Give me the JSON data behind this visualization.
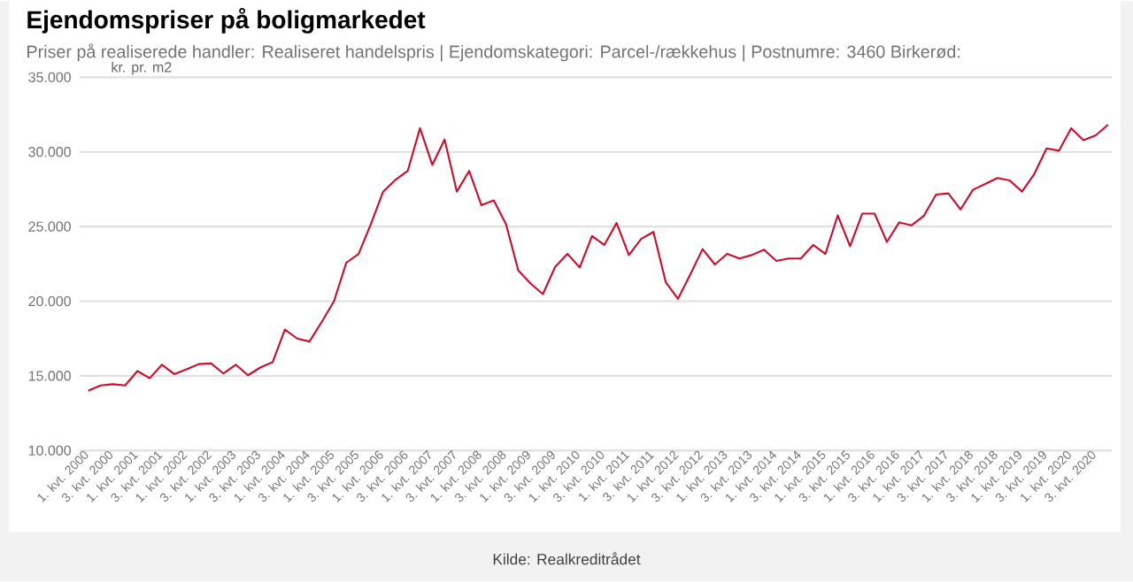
{
  "chart_data": {
    "type": "line",
    "title": "Ejendomspriser på boligmarkedet",
    "subtitle": "Priser på realiserede handler: Realiseret handelspris | Ejendomskategori: Parcel-/rækkehus | Postnumre: 3460 Birkerød:",
    "ylabel": "kr. pr. m2",
    "annotations": [
      "Kilde: Realkreditrådet"
    ],
    "categories": [
      "1. kvt. 2000",
      null,
      "3. kvt. 2000",
      null,
      "1. kvt. 2001",
      null,
      "3. kvt. 2001",
      null,
      "1. kvt. 2002",
      null,
      "3. kvt. 2002",
      null,
      "1. kvt. 2003",
      null,
      "3. kvt. 2003",
      null,
      "1. kvt. 2004",
      null,
      "3. kvt. 2004",
      null,
      "1. kvt. 2005",
      null,
      "3. kvt. 2005",
      null,
      "1. kvt. 2006",
      null,
      "3. kvt. 2006",
      null,
      "1. kvt. 2007",
      null,
      "3. kvt. 2007",
      null,
      "1. kvt. 2008",
      null,
      "3. kvt. 2008",
      null,
      "1. kvt. 2009",
      null,
      "3. kvt. 2009",
      null,
      "1. kvt. 2010",
      null,
      "3. kvt. 2010",
      null,
      "1. kvt. 2011",
      null,
      "3. kvt. 2011",
      null,
      "1. kvt. 2012",
      null,
      "3. kvt. 2012",
      null,
      "1. kvt. 2013",
      null,
      "3. kvt. 2013",
      null,
      "1. kvt. 2014",
      null,
      "3. kvt. 2014",
      null,
      "1. kvt. 2015",
      null,
      "3. kvt. 2015",
      null,
      "1. kvt. 2016",
      null,
      "3. kvt. 2016",
      null,
      "1. kvt. 2017",
      null,
      "3. kvt. 2017",
      null,
      "1. kvt. 2018",
      null,
      "3. kvt. 2018",
      null,
      "1. kvt. 2019",
      null,
      "3. kvt. 2019",
      null,
      "1. kvt. 2020",
      null,
      "3. kvt. 2020",
      null
    ],
    "series": [
      {
        "color": "#c8102e",
        "values": [
          14000,
          14360,
          14440,
          14360,
          15320,
          14840,
          15750,
          15120,
          15440,
          15790,
          15830,
          15160,
          15750,
          15040,
          15560,
          15910,
          18100,
          17500,
          17300,
          18610,
          20000,
          22580,
          23170,
          25160,
          27340,
          28130,
          28730,
          31590,
          29130,
          30830,
          27340,
          28730,
          26430,
          26750,
          25160,
          22060,
          21190,
          20480,
          22300,
          23170,
          22260,
          24360,
          23770,
          25240,
          23090,
          24170,
          24640,
          21270,
          20160,
          21790,
          23490,
          22460,
          23170,
          22860,
          23090,
          23450,
          22700,
          22860,
          22860,
          23770,
          23170,
          25750,
          23690,
          25870,
          25870,
          23970,
          25280,
          25080,
          25710,
          27140,
          27220,
          26150,
          27460,
          27850,
          28250,
          28090,
          27340,
          28530,
          30240,
          30080,
          31590,
          30790,
          31110,
          31820
        ]
      }
    ],
    "ylim": [
      10000,
      35000
    ],
    "yticks": [
      {
        "value": 10000,
        "label": "10.000"
      },
      {
        "value": 15000,
        "label": "15.000"
      },
      {
        "value": 20000,
        "label": "20.000"
      },
      {
        "value": 25000,
        "label": "25.000"
      },
      {
        "value": 30000,
        "label": "30.000"
      },
      {
        "value": 35000,
        "label": "35.000"
      }
    ],
    "grid": "y",
    "marker": "none",
    "line_style": "solid"
  }
}
